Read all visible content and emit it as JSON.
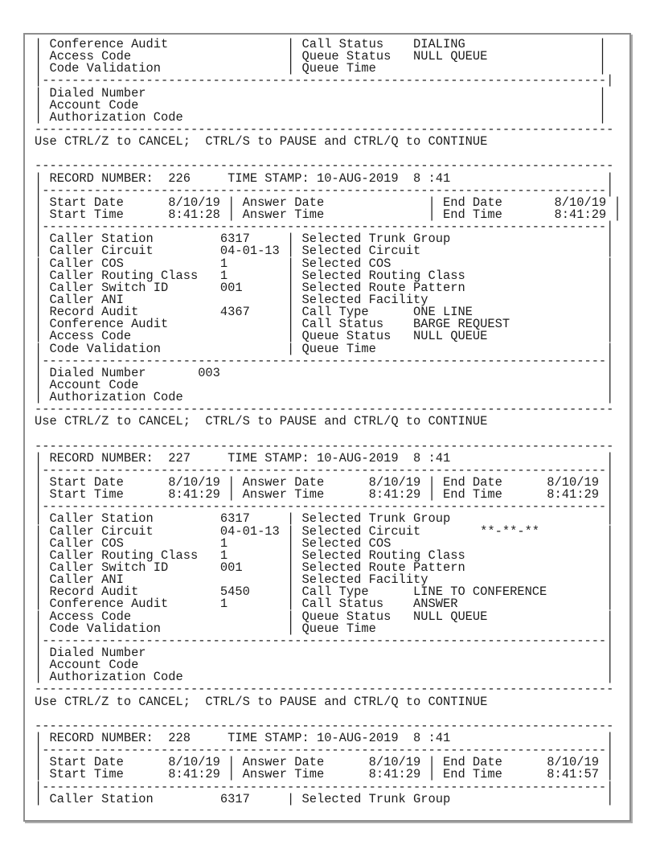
{
  "style": {
    "background": "#ffffff",
    "text_color": "#1c1c1c",
    "frame_border_color": "#8d8d8d"
  },
  "screen": {
    "lines": [
      "| Conference Audit                | Call Status    DIALING                  |",
      "| Access Code                     | Queue Status   NULL QUEUE               |",
      "| Code Validation                 | Queue Time                              |",
      "|----------------------------------------------------------------------------|",
      "| Dialed Number                                                             |",
      "| Account Code                                                              |",
      "| Authorization Code                                                        |",
      "------------------------------------------------------------------------------",
      "Use CTRL/Z to CANCEL;  CTRL/S to PAUSE and CTRL/Q to CONTINUE",
      "",
      "------------------------------------------------------------------------------",
      "| RECORD NUMBER:  226     TIME STAMP: 10-AUG-2019  8 :41                     |",
      "|----------------------------------------------------------------------------|",
      "| Start Date      8/10/19 | Answer Date              | End Date       8/10/19 |",
      "| Start Time      8:41:28 | Answer Time              | End Time       8:41:29 |",
      "|----------------------------------------------------------------------------|",
      "| Caller Station         6317     | Selected Trunk Group                     |",
      "| Caller Circuit         04-01-13 | Selected Circuit                         |",
      "| Caller COS             1        | Selected COS                             |",
      "| Caller Routing Class   1        | Selected Routing Class                   |",
      "| Caller Switch ID       001      | Selected Route Pattern                   |",
      "| Caller ANI                      | Selected Facility                        |",
      "| Record Audit           4367     | Call Type      ONE LINE                  |",
      "| Conference Audit                | Call Status    BARGE REQUEST             |",
      "| Access Code                     | Queue Status   NULL QUEUE                |",
      "| Code Validation                 | Queue Time                               |",
      "|----------------------------------------------------------------------------|",
      "| Dialed Number       003                                                    |",
      "| Account Code                                                               |",
      "| Authorization Code                                                         |",
      "------------------------------------------------------------------------------",
      "Use CTRL/Z to CANCEL;  CTRL/S to PAUSE and CTRL/Q to CONTINUE",
      "",
      "------------------------------------------------------------------------------",
      "| RECORD NUMBER:  227     TIME STAMP: 10-AUG-2019  8 :41                     |",
      "|----------------------------------------------------------------------------|",
      "| Start Date      8/10/19 | Answer Date      8/10/19 | End Date      8/10/19 |",
      "| Start Time      8:41:29 | Answer Time      8:41:29 | End Time      8:41:29 |",
      "|----------------------------------------------------------------------------|",
      "| Caller Station         6317     | Selected Trunk Group                     |",
      "| Caller Circuit         04-01-13 | Selected Circuit        **-**-**         |",
      "| Caller COS             1        | Selected COS                             |",
      "| Caller Routing Class   1        | Selected Routing Class                   |",
      "| Caller Switch ID       001      | Selected Route Pattern                   |",
      "| Caller ANI                      | Selected Facility                        |",
      "| Record Audit           5450     | Call Type      LINE TO CONFERENCE        |",
      "| Conference Audit       1        | Call Status    ANSWER                    |",
      "| Access Code                     | Queue Status   NULL QUEUE                |",
      "| Code Validation                 | Queue Time                               |",
      "|----------------------------------------------------------------------------|",
      "| Dialed Number                                                              |",
      "| Account Code                                                               |",
      "| Authorization Code                                                         |",
      "------------------------------------------------------------------------------",
      "Use CTRL/Z to CANCEL;  CTRL/S to PAUSE and CTRL/Q to CONTINUE",
      "",
      "------------------------------------------------------------------------------",
      "| RECORD NUMBER:  228     TIME STAMP: 10-AUG-2019  8 :41                     |",
      "|----------------------------------------------------------------------------|",
      "| Start Date      8/10/19 | Answer Date      8/10/19 | End Date      8/10/19 |",
      "| Start Time      8:41:29 | Answer Time      8:41:29 | End Time      8:41:57 |",
      "|----------------------------------------------------------------------------|",
      "| Caller Station         6317     | Selected Trunk Group                     |"
    ]
  }
}
